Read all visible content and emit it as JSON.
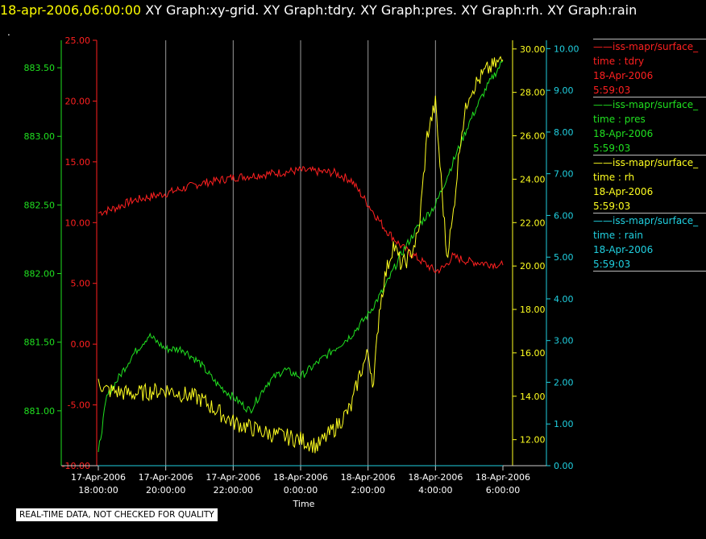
{
  "header": {
    "time": "18-apr-2006,06:00:00",
    "graphs": "XY Graph:xy-grid.  XY Graph:tdry.  XY Graph:pres.  XY Graph:rh.  XY Graph:rain",
    "dot": "."
  },
  "note": "REAL-TIME DATA, NOT CHECKED FOR QUALITY",
  "legend": [
    {
      "color": "#ff2020",
      "source": "iss-mapr/surface_",
      "var": "time : tdry",
      "date": "18-Apr-2006",
      "time": "5:59:03"
    },
    {
      "color": "#20e020",
      "source": "iss-mapr/surface_",
      "var": "time : pres",
      "date": "18-Apr-2006",
      "time": "5:59:03"
    },
    {
      "color": "#ffff20",
      "source": "iss-mapr/surface_",
      "var": "time : rh",
      "date": "18-Apr-2006",
      "time": "5:59:03"
    },
    {
      "color": "#20d0e0",
      "source": "iss-mapr/surface_",
      "var": "time : rain",
      "date": "18-Apr-2006",
      "time": "5:59:03"
    }
  ],
  "chart_data": {
    "type": "line",
    "xlabel": "Time",
    "x_ticks": [
      {
        "date": "17-Apr-2006",
        "time": "18:00:00"
      },
      {
        "date": "17-Apr-2006",
        "time": "20:00:00"
      },
      {
        "date": "17-Apr-2006",
        "time": "22:00:00"
      },
      {
        "date": "18-Apr-2006",
        "time": "0:00:00"
      },
      {
        "date": "18-Apr-2006",
        "time": "2:00:00"
      },
      {
        "date": "18-Apr-2006",
        "time": "4:00:00"
      },
      {
        "date": "18-Apr-2006",
        "time": "6:00:00"
      }
    ],
    "xlim": [
      "2006-04-17T18:00",
      "2006-04-18T06:00"
    ],
    "axes": {
      "pres": {
        "color": "#20e020",
        "ylim": [
          880.6,
          883.7
        ],
        "ticks": [
          "881.00",
          "881.50",
          "882.00",
          "882.50",
          "883.00",
          "883.50"
        ]
      },
      "tdry": {
        "color": "#ff2020",
        "ylim": [
          -10,
          25
        ],
        "ticks": [
          "-10.00",
          "-5.00",
          "0.00",
          "5.00",
          "10.00",
          "15.00",
          "20.00",
          "25.00"
        ]
      },
      "rh": {
        "color": "#ffff20",
        "ylim": [
          10.8,
          30.4
        ],
        "ticks": [
          "12.00",
          "14.00",
          "16.00",
          "18.00",
          "20.00",
          "22.00",
          "24.00",
          "26.00",
          "28.00",
          "30.00"
        ]
      },
      "rain": {
        "color": "#20d0e0",
        "ylim": [
          0,
          10.2
        ],
        "ticks": [
          "0.00",
          "1.00",
          "2.00",
          "3.00",
          "4.00",
          "5.00",
          "6.00",
          "7.00",
          "8.00",
          "9.00",
          "10.00"
        ]
      }
    },
    "series": [
      {
        "name": "tdry",
        "axis": "tdry",
        "x": [
          "2006-04-17T18:00",
          "2006-04-17T18:30",
          "2006-04-17T19:00",
          "2006-04-17T20:00",
          "2006-04-17T21:00",
          "2006-04-17T22:00",
          "2006-04-17T23:00",
          "2006-04-18T00:00",
          "2006-04-18T01:00",
          "2006-04-18T01:30",
          "2006-04-18T02:00",
          "2006-04-18T02:30",
          "2006-04-18T03:00",
          "2006-04-18T03:30",
          "2006-04-18T04:00",
          "2006-04-18T04:15",
          "2006-04-18T04:30",
          "2006-04-18T05:00",
          "2006-04-18T06:00"
        ],
        "values": [
          10.8,
          11.2,
          11.8,
          12.4,
          13.2,
          13.7,
          14.0,
          14.3,
          14.1,
          13.5,
          11.5,
          9.5,
          8.0,
          7.0,
          6.0,
          6.3,
          7.2,
          6.8,
          6.5
        ]
      },
      {
        "name": "pres",
        "axis": "pres",
        "x": [
          "2006-04-17T18:00",
          "2006-04-17T18:15",
          "2006-04-17T19:00",
          "2006-04-17T19:30",
          "2006-04-17T20:00",
          "2006-04-17T20:30",
          "2006-04-17T21:00",
          "2006-04-17T21:30",
          "2006-04-17T22:00",
          "2006-04-17T22:30",
          "2006-04-17T23:00",
          "2006-04-17T23:30",
          "2006-04-18T00:00",
          "2006-04-18T00:30",
          "2006-04-18T01:00",
          "2006-04-18T01:30",
          "2006-04-18T02:00",
          "2006-04-18T02:30",
          "2006-04-18T03:00",
          "2006-04-18T03:30",
          "2006-04-18T04:00",
          "2006-04-18T04:30",
          "2006-04-18T05:00",
          "2006-04-18T05:30",
          "2006-04-18T06:00"
        ],
        "values": [
          880.7,
          881.1,
          881.4,
          881.55,
          881.45,
          881.45,
          881.35,
          881.2,
          881.1,
          881.0,
          881.2,
          881.3,
          881.25,
          881.35,
          881.45,
          881.55,
          881.7,
          881.9,
          882.15,
          882.35,
          882.5,
          882.8,
          883.1,
          883.35,
          883.55
        ]
      },
      {
        "name": "rh",
        "axis": "rh",
        "x": [
          "2006-04-17T18:00",
          "2006-04-17T18:10",
          "2006-04-17T19:00",
          "2006-04-17T20:00",
          "2006-04-17T21:00",
          "2006-04-17T22:00",
          "2006-04-17T23:00",
          "2006-04-18T00:00",
          "2006-04-18T00:30",
          "2006-04-18T01:00",
          "2006-04-18T01:30",
          "2006-04-18T01:45",
          "2006-04-18T02:00",
          "2006-04-18T02:10",
          "2006-04-18T02:20",
          "2006-04-18T02:30",
          "2006-04-18T02:45",
          "2006-04-18T03:00",
          "2006-04-18T03:15",
          "2006-04-18T03:30",
          "2006-04-18T03:45",
          "2006-04-18T04:00",
          "2006-04-18T04:10",
          "2006-04-18T04:20",
          "2006-04-18T04:30",
          "2006-04-18T04:45",
          "2006-04-18T05:00",
          "2006-04-18T05:30",
          "2006-04-18T06:00"
        ],
        "values": [
          14.8,
          14.3,
          14.1,
          14.3,
          13.9,
          12.8,
          12.3,
          12.0,
          11.7,
          12.5,
          13.5,
          15.0,
          16.0,
          14.5,
          18.0,
          19.5,
          21.0,
          20.0,
          20.5,
          21.5,
          26.0,
          27.5,
          24.0,
          20.5,
          22.0,
          26.0,
          28.0,
          29.0,
          29.5
        ]
      },
      {
        "name": "rain",
        "axis": "rain",
        "x": [
          "2006-04-17T18:00",
          "2006-04-18T06:00"
        ],
        "values": [
          0.0,
          0.0
        ]
      }
    ]
  }
}
